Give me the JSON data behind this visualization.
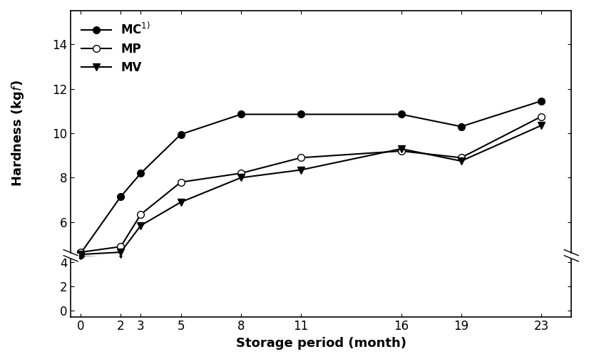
{
  "x": [
    0,
    2,
    3,
    5,
    8,
    11,
    16,
    19,
    23
  ],
  "MC": [
    4.6,
    7.15,
    8.2,
    9.95,
    10.85,
    10.85,
    10.85,
    10.3,
    11.45
  ],
  "MP": [
    4.65,
    4.9,
    6.35,
    7.8,
    8.2,
    8.9,
    9.2,
    8.9,
    10.75
  ],
  "MV": [
    4.55,
    4.65,
    5.85,
    6.9,
    8.0,
    8.35,
    9.3,
    8.75,
    10.35
  ],
  "xlabel": "Storage period (month)",
  "ylabel": "Hardness (kg",
  "ylabel_italic": "f",
  "ylabel_suffix": ")",
  "xticks": [
    0,
    2,
    3,
    5,
    8,
    11,
    16,
    19,
    23
  ],
  "yticks_main": [
    6,
    8,
    10,
    12,
    14
  ],
  "yticks_break": [
    0,
    2,
    4
  ],
  "ylim_main": [
    4.5,
    15.5
  ],
  "xlim": [
    -0.5,
    24.5
  ],
  "legend_labels": [
    "MC$^{1)}$",
    "MP",
    "MV"
  ],
  "line_color": "#000000",
  "bg_color": "#ffffff",
  "xlabel_fontsize": 13,
  "ylabel_fontsize": 13,
  "tick_fontsize": 12,
  "legend_fontsize": 12
}
